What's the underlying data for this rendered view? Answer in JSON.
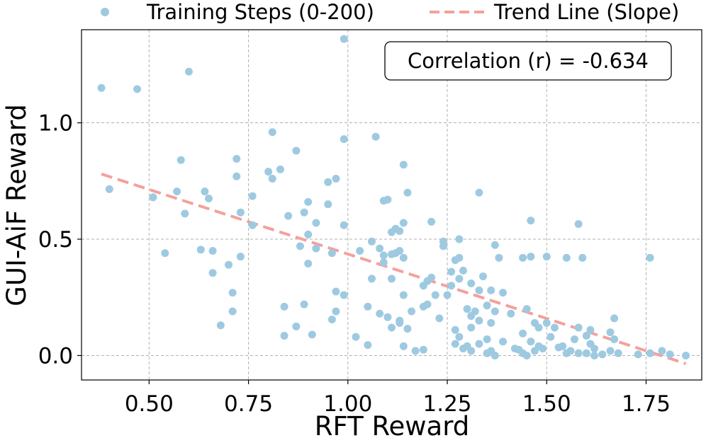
{
  "chart_data": {
    "type": "scatter",
    "title": "",
    "xlabel": "RFT Reward",
    "ylabel": "GUI-AiF Reward",
    "xlim": [
      0.33,
      1.89
    ],
    "ylim": [
      -0.105,
      1.4
    ],
    "xticks": [
      0.5,
      0.75,
      1.0,
      1.25,
      1.5,
      1.75
    ],
    "xtick_labels": [
      "0.50",
      "0.75",
      "1.00",
      "1.25",
      "1.50",
      "1.75"
    ],
    "yticks": [
      0.0,
      0.5,
      1.0
    ],
    "ytick_labels": [
      "0.0",
      "0.5",
      "1.0"
    ],
    "grid": true,
    "legend_position": "top (outside, above plot)",
    "annotation": "Correlation (r) = -0.634",
    "colors": {
      "points": "#9ecae1",
      "trend": "#f4a09c",
      "grid": "#b0b0b0",
      "frame": "#000000"
    },
    "series": [
      {
        "name": "Training Steps (0-200)",
        "kind": "scatter",
        "points": [
          [
            0.38,
            1.15
          ],
          [
            0.47,
            1.145
          ],
          [
            0.6,
            1.22
          ],
          [
            0.99,
            1.36
          ],
          [
            0.81,
            0.96
          ],
          [
            0.99,
            0.93
          ],
          [
            1.07,
            0.94
          ],
          [
            0.87,
            0.88
          ],
          [
            0.58,
            0.84
          ],
          [
            0.72,
            0.845
          ],
          [
            1.14,
            0.82
          ],
          [
            0.8,
            0.79
          ],
          [
            0.83,
            0.8
          ],
          [
            0.81,
            0.76
          ],
          [
            0.72,
            0.77
          ],
          [
            0.97,
            0.76
          ],
          [
            0.95,
            0.745
          ],
          [
            0.4,
            0.715
          ],
          [
            0.57,
            0.705
          ],
          [
            0.64,
            0.705
          ],
          [
            1.15,
            0.7
          ],
          [
            1.33,
            0.7
          ],
          [
            0.51,
            0.68
          ],
          [
            0.65,
            0.675
          ],
          [
            0.76,
            0.685
          ],
          [
            1.09,
            0.665
          ],
          [
            1.1,
            0.67
          ],
          [
            0.9,
            0.66
          ],
          [
            0.95,
            0.65
          ],
          [
            0.73,
            0.615
          ],
          [
            0.59,
            0.61
          ],
          [
            0.89,
            0.615
          ],
          [
            0.85,
            0.6
          ],
          [
            1.14,
            0.57
          ],
          [
            0.76,
            0.56
          ],
          [
            0.92,
            0.57
          ],
          [
            0.99,
            0.56
          ],
          [
            1.21,
            0.575
          ],
          [
            1.46,
            0.58
          ],
          [
            1.58,
            0.565
          ],
          [
            1.12,
            0.545
          ],
          [
            1.13,
            0.535
          ],
          [
            0.9,
            0.52
          ],
          [
            1.11,
            0.53
          ],
          [
            1.28,
            0.5
          ],
          [
            0.88,
            0.47
          ],
          [
            0.92,
            0.46
          ],
          [
            1.06,
            0.49
          ],
          [
            0.63,
            0.455
          ],
          [
            0.66,
            0.45
          ],
          [
            0.96,
            0.44
          ],
          [
            1.03,
            0.45
          ],
          [
            1.08,
            0.46
          ],
          [
            1.12,
            0.44
          ],
          [
            1.13,
            0.45
          ],
          [
            1.24,
            0.49
          ],
          [
            1.24,
            0.47
          ],
          [
            1.37,
            0.475
          ],
          [
            0.54,
            0.44
          ],
          [
            0.73,
            0.425
          ],
          [
            1.09,
            0.43
          ],
          [
            1.11,
            0.435
          ],
          [
            1.14,
            0.42
          ],
          [
            1.27,
            0.41
          ],
          [
            1.28,
            0.42
          ],
          [
            1.38,
            0.42
          ],
          [
            1.44,
            0.42
          ],
          [
            1.46,
            0.425
          ],
          [
            1.5,
            0.425
          ],
          [
            1.55,
            0.42
          ],
          [
            1.59,
            0.42
          ],
          [
            1.76,
            0.42
          ],
          [
            0.7,
            0.39
          ],
          [
            0.9,
            0.395
          ],
          [
            1.09,
            0.4
          ],
          [
            1.2,
            0.32
          ],
          [
            1.21,
            0.335
          ],
          [
            1.26,
            0.36
          ],
          [
            1.29,
            0.365
          ],
          [
            1.34,
            0.34
          ],
          [
            0.66,
            0.355
          ],
          [
            1.11,
            0.33
          ],
          [
            1.19,
            0.3
          ],
          [
            1.26,
            0.3
          ],
          [
            1.28,
            0.33
          ],
          [
            1.31,
            0.31
          ],
          [
            1.36,
            0.28
          ],
          [
            1.39,
            0.27
          ],
          [
            1.06,
            0.33
          ],
          [
            0.71,
            0.27
          ],
          [
            0.99,
            0.26
          ],
          [
            1.14,
            0.26
          ],
          [
            1.22,
            0.26
          ],
          [
            1.25,
            0.26
          ],
          [
            1.33,
            0.28
          ],
          [
            0.89,
            0.22
          ],
          [
            0.97,
            0.275
          ],
          [
            0.84,
            0.21
          ],
          [
            1.05,
            0.21
          ],
          [
            1.2,
            0.22
          ],
          [
            1.3,
            0.2
          ],
          [
            1.35,
            0.215
          ],
          [
            0.71,
            0.19
          ],
          [
            0.97,
            0.19
          ],
          [
            1.1,
            0.165
          ],
          [
            1.16,
            0.19
          ],
          [
            1.19,
            0.21
          ],
          [
            1.32,
            0.19
          ],
          [
            1.41,
            0.18
          ],
          [
            1.45,
            0.2
          ],
          [
            1.5,
            0.14
          ],
          [
            1.08,
            0.18
          ],
          [
            1.13,
            0.15
          ],
          [
            1.23,
            0.16
          ],
          [
            1.31,
            0.17
          ],
          [
            1.37,
            0.19
          ],
          [
            1.47,
            0.14
          ],
          [
            1.58,
            0.12
          ],
          [
            1.67,
            0.16
          ],
          [
            0.68,
            0.13
          ],
          [
            0.87,
            0.125
          ],
          [
            0.96,
            0.155
          ],
          [
            1.11,
            0.12
          ],
          [
            1.13,
            0.14
          ],
          [
            1.15,
            0.115
          ],
          [
            1.27,
            0.11
          ],
          [
            1.31,
            0.12
          ],
          [
            1.33,
            0.15
          ],
          [
            1.36,
            0.14
          ],
          [
            1.48,
            0.12
          ],
          [
            1.52,
            0.12
          ],
          [
            1.61,
            0.11
          ],
          [
            1.66,
            0.1
          ],
          [
            0.84,
            0.085
          ],
          [
            0.91,
            0.09
          ],
          [
            1.02,
            0.08
          ],
          [
            1.28,
            0.08
          ],
          [
            1.35,
            0.07
          ],
          [
            1.44,
            0.095
          ],
          [
            1.51,
            0.08
          ],
          [
            1.57,
            0.07
          ],
          [
            1.6,
            0.085
          ],
          [
            1.67,
            0.07
          ],
          [
            1.14,
            0.04
          ],
          [
            1.27,
            0.05
          ],
          [
            1.3,
            0.04
          ],
          [
            1.33,
            0.05
          ],
          [
            1.39,
            0.06
          ],
          [
            1.46,
            0.06
          ],
          [
            1.48,
            0.04
          ],
          [
            1.54,
            0.04
          ],
          [
            1.61,
            0.05
          ],
          [
            1.05,
            0.045
          ],
          [
            1.17,
            0.02
          ],
          [
            1.19,
            0.025
          ],
          [
            1.29,
            0.03
          ],
          [
            1.31,
            0.02
          ],
          [
            1.35,
            0.01
          ],
          [
            1.36,
            0.02
          ],
          [
            1.42,
            0.03
          ],
          [
            1.43,
            0.025
          ],
          [
            1.44,
            0.01
          ],
          [
            1.47,
            0.02
          ],
          [
            1.49,
            0.03
          ],
          [
            1.53,
            0.035
          ],
          [
            1.56,
            0.02
          ],
          [
            1.58,
            0.01
          ],
          [
            1.6,
            0.01
          ],
          [
            1.62,
            0.03
          ],
          [
            1.64,
            0.005
          ],
          [
            1.66,
            0.02
          ],
          [
            1.68,
            0.01
          ],
          [
            1.73,
            0.005
          ],
          [
            1.76,
            0.01
          ],
          [
            1.79,
            0.02
          ],
          [
            1.81,
            0.005
          ],
          [
            1.85,
            0.0
          ],
          [
            1.37,
            0.0
          ],
          [
            1.55,
            0.01
          ],
          [
            1.45,
            0.0
          ],
          [
            1.62,
            0.0
          ]
        ]
      },
      {
        "name": "Trend Line (Slope)",
        "kind": "line",
        "x": [
          0.38,
          1.85
        ],
        "y": [
          0.78,
          -0.035
        ]
      }
    ]
  }
}
